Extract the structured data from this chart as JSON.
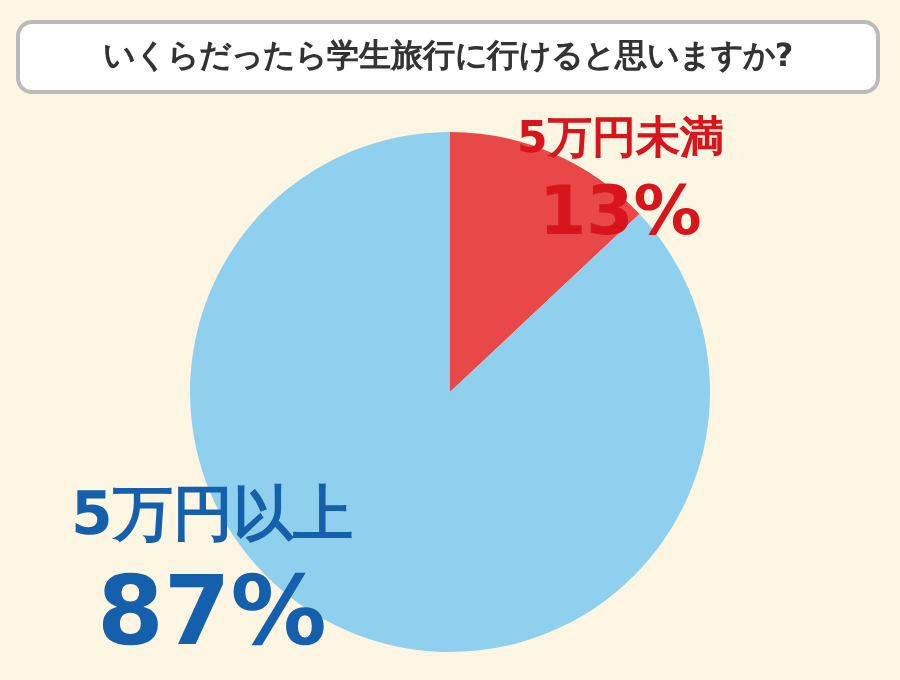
{
  "chart_data": {
    "type": "pie",
    "title": "いくらだったら学生旅行に行けると思いますか?",
    "categories": [
      "5万円未満",
      "5万円以上"
    ],
    "values": [
      13,
      87
    ],
    "value_labels": [
      "13%",
      "87%"
    ],
    "colors": [
      "#e84848",
      "#8fd0ee"
    ],
    "legend": false
  }
}
